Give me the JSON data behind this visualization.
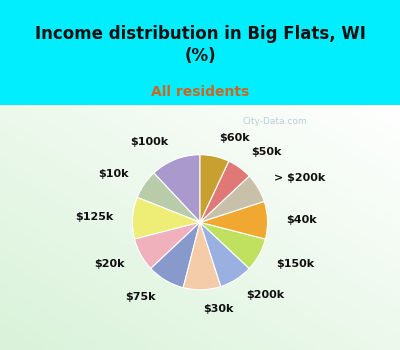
{
  "title": "Income distribution in Big Flats, WI\n(%)",
  "subtitle": "All residents",
  "title_color": "#111111",
  "subtitle_color": "#cc6622",
  "bg_cyan": "#00eeff",
  "watermark": "City-Data.com",
  "labels": [
    "$100k",
    "$10k",
    "$125k",
    "$20k",
    "$75k",
    "$30k",
    "$200k",
    "$150k",
    "$40k",
    "> $200k",
    "$50k",
    "$60k"
  ],
  "values": [
    12,
    7,
    10,
    8,
    9,
    9,
    8,
    8,
    9,
    7,
    6,
    7
  ],
  "colors": [
    "#aa99cc",
    "#b8ccaa",
    "#eeee77",
    "#f0b0bc",
    "#8899cc",
    "#f5ccaa",
    "#9ab0e0",
    "#c0e060",
    "#f0a830",
    "#c8c0a8",
    "#e07878",
    "#c8a030"
  ],
  "startangle": 90,
  "label_fontsize": 8,
  "title_fontsize": 12,
  "subtitle_fontsize": 10
}
